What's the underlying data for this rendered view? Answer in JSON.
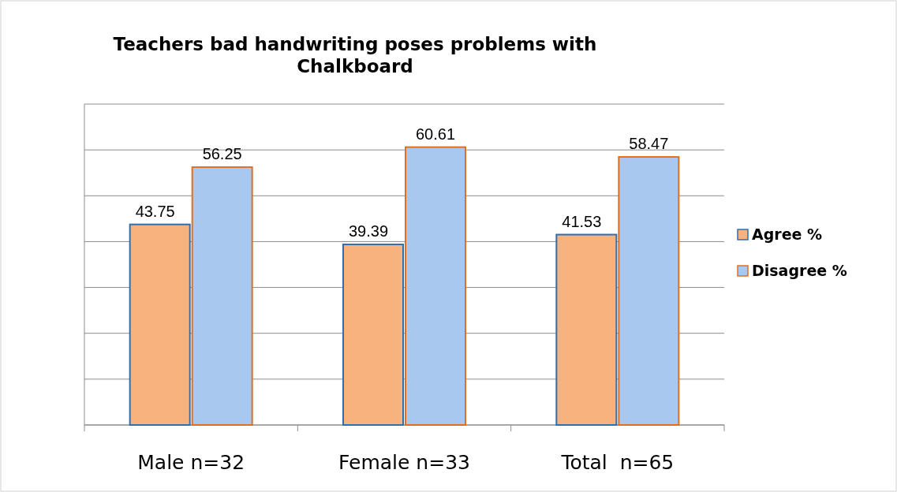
{
  "chart_data": {
    "type": "bar",
    "title": "Teachers bad handwriting poses problems with Chalkboard",
    "categories": [
      "Male n=32",
      "Female n=33",
      "Total  n=65"
    ],
    "series": [
      {
        "name": "Agree %",
        "color": "#f7b27e",
        "values": [
          43.75,
          39.39,
          41.53
        ]
      },
      {
        "name": "Disagree %",
        "color": "#a9c8f0",
        "values": [
          56.25,
          60.61,
          58.47
        ]
      }
    ],
    "ylim": [
      0,
      70
    ],
    "yticks": [
      {
        "value": 0,
        "label": null
      },
      {
        "value": 10,
        "label": null
      },
      {
        "value": 20,
        "label": null
      },
      {
        "value": 30,
        "label": null
      },
      {
        "value": 40,
        "label": null
      },
      {
        "value": 50,
        "label": null
      },
      {
        "value": 60,
        "label": null
      },
      {
        "value": 70,
        "label": null
      }
    ],
    "tick_labels": "x",
    "grid": "y",
    "legend": "right",
    "data_labels": true
  }
}
